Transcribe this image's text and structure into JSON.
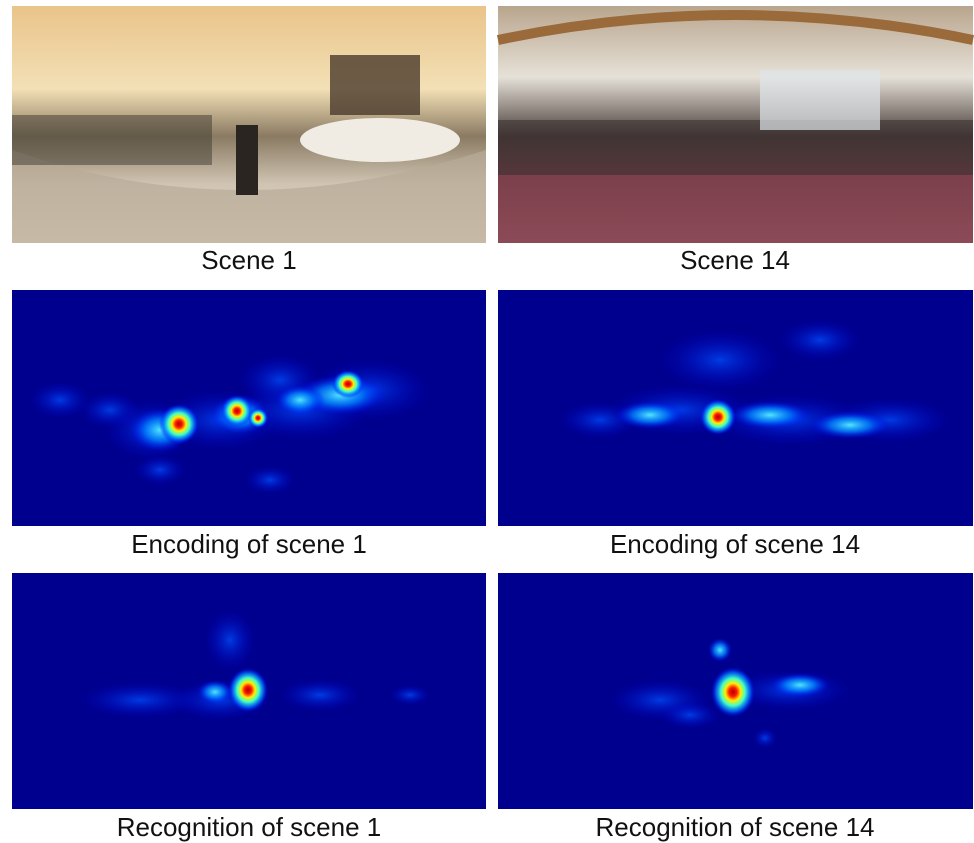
{
  "panels": [
    {
      "caption": "Scene 1"
    },
    {
      "caption": "Scene 14"
    },
    {
      "caption": "Encoding of scene 1"
    },
    {
      "caption": "Encoding of scene 14"
    },
    {
      "caption": "Recognition of scene 1"
    },
    {
      "caption": "Recognition of scene 14"
    }
  ]
}
